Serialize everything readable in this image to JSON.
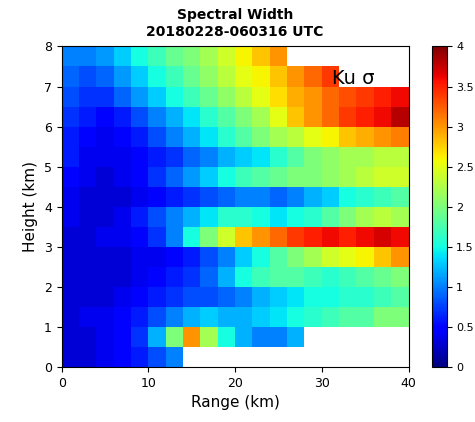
{
  "chart_data": {
    "type": "heatmap",
    "title": "Spectral Width",
    "subtitle": "20180228-060316 UTC",
    "annotation": "Ku σ",
    "x_label": "Range (km)",
    "y_label": "Height (km)",
    "xlim": [
      0,
      40
    ],
    "xticks": [
      0,
      10,
      20,
      30,
      40
    ],
    "ylim": [
      0,
      8
    ],
    "yticks": [
      0,
      1,
      2,
      3,
      4,
      5,
      6,
      7,
      8
    ],
    "x_edges": [
      0,
      2,
      4,
      6,
      8,
      10,
      12,
      14,
      16,
      18,
      20,
      22,
      24,
      26,
      28,
      30,
      32,
      34,
      36,
      38,
      40
    ],
    "y_edges": [
      0,
      0.5,
      1,
      1.5,
      2,
      2.5,
      3,
      3.5,
      4,
      4.5,
      5,
      5.5,
      6,
      6.5,
      7,
      7.5,
      8
    ],
    "cells": [
      [
        0.3,
        0.3,
        0.4,
        0.5,
        0.6,
        0.8,
        1.0,
        null,
        null,
        null,
        null,
        null,
        null,
        null,
        null,
        null,
        null,
        null,
        null,
        null
      ],
      [
        0.3,
        0.3,
        0.4,
        0.5,
        0.7,
        1.2,
        2.0,
        3.0,
        2.2,
        1.5,
        1.2,
        1.0,
        1.0,
        1.2,
        null,
        null,
        null,
        null,
        null,
        null
      ],
      [
        0.3,
        0.4,
        0.4,
        0.5,
        0.6,
        0.8,
        1.0,
        1.2,
        1.3,
        1.2,
        1.2,
        1.3,
        1.4,
        1.5,
        1.6,
        1.7,
        1.8,
        1.8,
        2.0,
        2.0
      ],
      [
        0.3,
        0.3,
        0.3,
        0.4,
        0.5,
        0.6,
        0.7,
        0.8,
        0.8,
        0.9,
        1.0,
        1.2,
        1.3,
        1.4,
        1.5,
        1.5,
        1.6,
        1.6,
        1.7,
        1.8
      ],
      [
        0.3,
        0.3,
        0.3,
        0.3,
        0.4,
        0.5,
        0.6,
        0.7,
        0.9,
        1.2,
        1.5,
        1.7,
        1.8,
        1.8,
        1.7,
        1.6,
        1.7,
        1.8,
        1.9,
        2.0
      ],
      [
        0.3,
        0.3,
        0.3,
        0.3,
        0.4,
        0.4,
        0.5,
        0.6,
        0.8,
        1.0,
        1.3,
        1.5,
        1.8,
        2.0,
        2.2,
        2.4,
        2.5,
        2.6,
        2.8,
        3.0
      ],
      [
        0.3,
        0.3,
        0.4,
        0.4,
        0.5,
        0.7,
        1.0,
        1.5,
        2.0,
        2.4,
        2.8,
        3.0,
        3.2,
        3.4,
        3.5,
        3.6,
        3.5,
        3.6,
        3.7,
        3.6
      ],
      [
        0.4,
        0.3,
        0.3,
        0.4,
        0.6,
        0.8,
        1.0,
        1.2,
        1.4,
        1.6,
        1.6,
        1.5,
        1.4,
        1.5,
        1.6,
        1.8,
        2.0,
        2.2,
        2.3,
        2.2
      ],
      [
        0.4,
        0.3,
        0.3,
        0.3,
        0.4,
        0.5,
        0.6,
        0.7,
        0.8,
        0.9,
        1.0,
        1.0,
        0.9,
        1.0,
        1.2,
        1.3,
        1.5,
        1.6,
        1.7,
        1.8
      ],
      [
        0.5,
        0.4,
        0.3,
        0.4,
        0.5,
        0.7,
        0.9,
        1.1,
        1.3,
        1.5,
        1.7,
        1.8,
        1.9,
        2.0,
        2.0,
        2.1,
        2.2,
        2.3,
        2.4,
        2.4
      ],
      [
        0.6,
        0.4,
        0.4,
        0.4,
        0.5,
        0.6,
        0.7,
        0.9,
        1.0,
        1.2,
        1.3,
        1.4,
        1.6,
        1.8,
        2.0,
        2.1,
        2.2,
        2.2,
        2.3,
        2.3
      ],
      [
        0.6,
        0.5,
        0.4,
        0.5,
        0.6,
        0.8,
        1.0,
        1.2,
        1.4,
        1.6,
        1.8,
        2.0,
        2.2,
        2.3,
        2.5,
        2.6,
        2.8,
        2.9,
        3.0,
        3.1
      ],
      [
        0.7,
        0.6,
        0.5,
        0.6,
        0.8,
        1.0,
        1.2,
        1.4,
        1.6,
        1.8,
        2.0,
        2.2,
        2.5,
        2.8,
        3.0,
        3.2,
        3.4,
        3.5,
        3.6,
        3.8
      ],
      [
        0.8,
        0.7,
        0.7,
        0.9,
        1.1,
        1.3,
        1.5,
        1.7,
        1.9,
        2.1,
        2.3,
        2.5,
        2.7,
        2.9,
        3.0,
        3.2,
        3.3,
        3.4,
        3.5,
        3.6
      ],
      [
        0.9,
        0.8,
        0.9,
        1.1,
        1.3,
        1.5,
        1.7,
        1.9,
        2.1,
        2.3,
        2.5,
        2.6,
        2.8,
        3.0,
        3.2,
        3.4,
        null,
        null,
        null,
        null
      ],
      [
        1.0,
        1.0,
        1.1,
        1.3,
        1.5,
        1.7,
        1.9,
        2.0,
        2.2,
        2.4,
        2.6,
        2.8,
        3.0,
        null,
        null,
        null,
        null,
        null,
        null,
        null
      ]
    ],
    "color_range": [
      0,
      4
    ],
    "color_ticks": [
      0,
      0.5,
      1,
      1.5,
      2,
      2.5,
      3,
      3.5,
      4
    ]
  }
}
